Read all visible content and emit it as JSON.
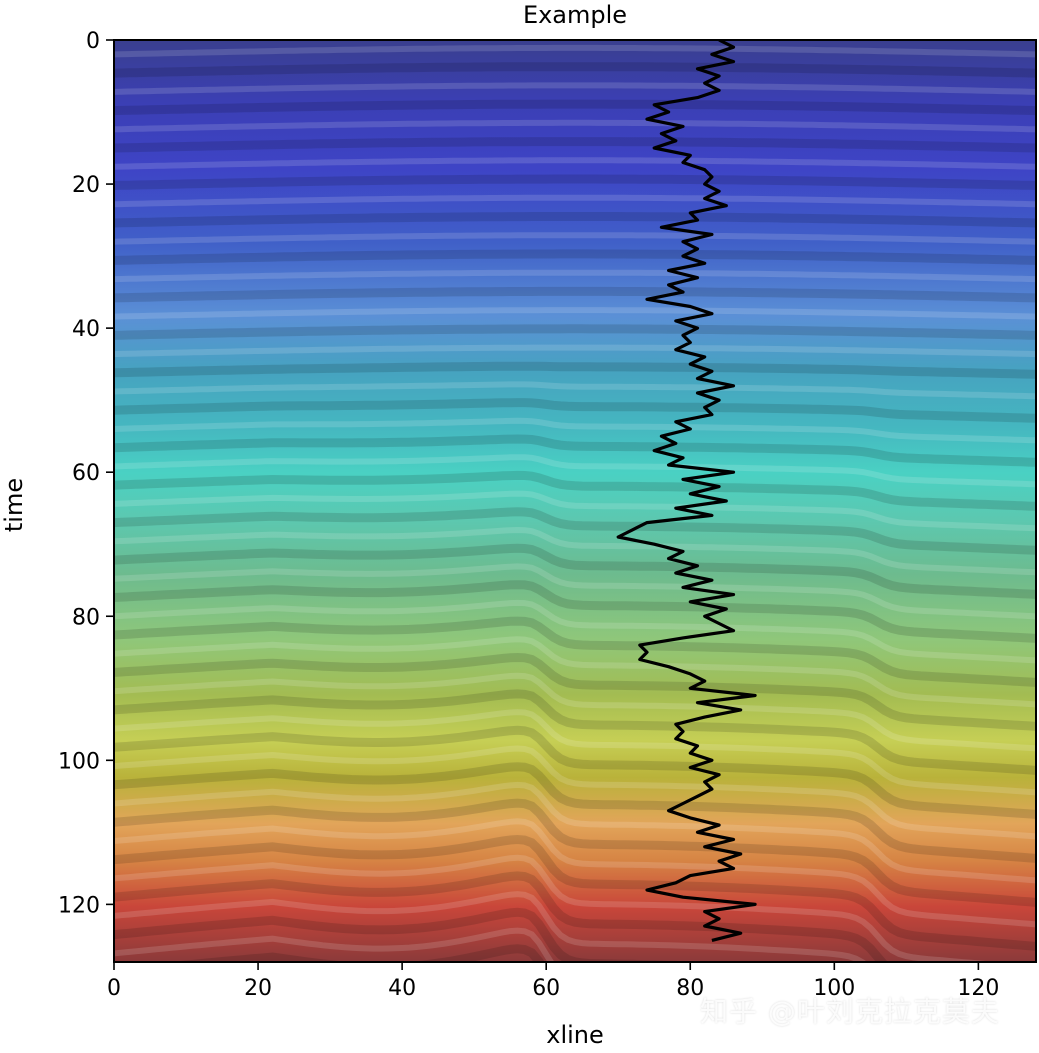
{
  "chart_data": {
    "type": "heatmap",
    "title": "Example",
    "xlabel": "xline",
    "ylabel": "time",
    "xlim": [
      0,
      128
    ],
    "ylim": [
      128,
      0
    ],
    "x_ticks": [
      0,
      20,
      40,
      60,
      80,
      100,
      120
    ],
    "y_ticks": [
      0,
      20,
      40,
      60,
      80,
      100,
      120
    ],
    "grid": false,
    "colormap": "jet (reversed overlay, semi-transparent)",
    "background": "seismic section with layered reflectors and normal faults near xline 60 and 106",
    "series": [
      {
        "type": "line",
        "color": "#000000",
        "points": [
          [
            84,
            0
          ],
          [
            86,
            1
          ],
          [
            83,
            2
          ],
          [
            86,
            3
          ],
          [
            81,
            4
          ],
          [
            84,
            5
          ],
          [
            82,
            6
          ],
          [
            84,
            7
          ],
          [
            81,
            8
          ],
          [
            75,
            9
          ],
          [
            77,
            10
          ],
          [
            74,
            11
          ],
          [
            79,
            12
          ],
          [
            76,
            13
          ],
          [
            78,
            14
          ],
          [
            75,
            15
          ],
          [
            80,
            16
          ],
          [
            79,
            17
          ],
          [
            82,
            18
          ],
          [
            83,
            19
          ],
          [
            82,
            20
          ],
          [
            84,
            21
          ],
          [
            82,
            22
          ],
          [
            85,
            23
          ],
          [
            80,
            24
          ],
          [
            81,
            25
          ],
          [
            76,
            26
          ],
          [
            83,
            27
          ],
          [
            79,
            28
          ],
          [
            81,
            29
          ],
          [
            79,
            30
          ],
          [
            82,
            31
          ],
          [
            77,
            32
          ],
          [
            81,
            33
          ],
          [
            77,
            34
          ],
          [
            79,
            35
          ],
          [
            74,
            36
          ],
          [
            80,
            37
          ],
          [
            83,
            38
          ],
          [
            78,
            39
          ],
          [
            81,
            40
          ],
          [
            79,
            41
          ],
          [
            80,
            42
          ],
          [
            78,
            43
          ],
          [
            82,
            44
          ],
          [
            80,
            45
          ],
          [
            83,
            46
          ],
          [
            81,
            47
          ],
          [
            86,
            48
          ],
          [
            81,
            49
          ],
          [
            84,
            50
          ],
          [
            82,
            51
          ],
          [
            83,
            52
          ],
          [
            78,
            53
          ],
          [
            80,
            54
          ],
          [
            76,
            55
          ],
          [
            78,
            56
          ],
          [
            75,
            57
          ],
          [
            79,
            58
          ],
          [
            77,
            59
          ],
          [
            86,
            60
          ],
          [
            79,
            61
          ],
          [
            84,
            62
          ],
          [
            80,
            63
          ],
          [
            85,
            64
          ],
          [
            78,
            65
          ],
          [
            83,
            66
          ],
          [
            74,
            67
          ],
          [
            72,
            68
          ],
          [
            70,
            69
          ],
          [
            75,
            70
          ],
          [
            79,
            71
          ],
          [
            77,
            72
          ],
          [
            81,
            73
          ],
          [
            78,
            74
          ],
          [
            83,
            75
          ],
          [
            79,
            76
          ],
          [
            86,
            77
          ],
          [
            80,
            78
          ],
          [
            85,
            79
          ],
          [
            82,
            80
          ],
          [
            84,
            81
          ],
          [
            86,
            82
          ],
          [
            79,
            83
          ],
          [
            73,
            84
          ],
          [
            74,
            85
          ],
          [
            73,
            86
          ],
          [
            77,
            87
          ],
          [
            80,
            88
          ],
          [
            82,
            89
          ],
          [
            80,
            90
          ],
          [
            89,
            91
          ],
          [
            81,
            92
          ],
          [
            87,
            93
          ],
          [
            82,
            94
          ],
          [
            78,
            95
          ],
          [
            79,
            96
          ],
          [
            78,
            97
          ],
          [
            81,
            98
          ],
          [
            80,
            99
          ],
          [
            83,
            100
          ],
          [
            80,
            101
          ],
          [
            84,
            102
          ],
          [
            82,
            103
          ],
          [
            83,
            104
          ],
          [
            81,
            105
          ],
          [
            79,
            106
          ],
          [
            77,
            107
          ],
          [
            80,
            108
          ],
          [
            84,
            109
          ],
          [
            81,
            110
          ],
          [
            86,
            111
          ],
          [
            82,
            112
          ],
          [
            87,
            113
          ],
          [
            84,
            114
          ],
          [
            86,
            115
          ],
          [
            80,
            116
          ],
          [
            78,
            117
          ],
          [
            74,
            118
          ],
          [
            79,
            119
          ],
          [
            89,
            120
          ],
          [
            82,
            121
          ],
          [
            84,
            122
          ],
          [
            82,
            123
          ],
          [
            87,
            124
          ],
          [
            83,
            125
          ]
        ]
      }
    ]
  }
}
